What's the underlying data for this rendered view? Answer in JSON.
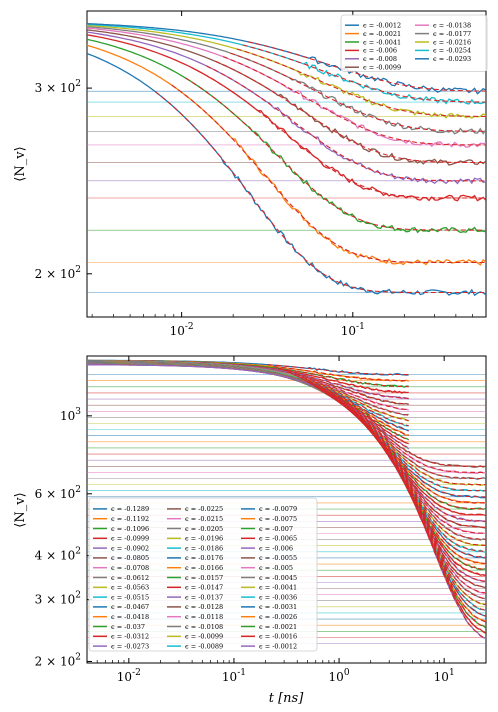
{
  "chart_data": [
    {
      "type": "line",
      "xscale": "log",
      "yscale": "log",
      "xlim": [
        0.0028,
        0.6
      ],
      "ylim": [
        182,
        355
      ],
      "ylabel": "⟨N_v⟩",
      "xlabel": "",
      "x_ticks": [
        {
          "value": 0.01,
          "base": "10",
          "exp": "-2"
        },
        {
          "value": 0.1,
          "base": "10",
          "exp": "-1"
        }
      ],
      "y_ticks": [
        {
          "value": 200,
          "mant": "2",
          "base": "10",
          "exp": "2"
        },
        {
          "value": 300,
          "mant": "3",
          "base": "10",
          "exp": "2"
        }
      ],
      "legend": {
        "placement": "top-right",
        "columns": 2
      },
      "dashed_fit_lines": true,
      "series": [
        {
          "name": "ϵ = -0.0012",
          "color": "#1f77b4",
          "y_start": 348,
          "y_final": 192
        },
        {
          "name": "ϵ = -0.0021",
          "color": "#ff7f0e",
          "y_start": 348,
          "y_final": 205
        },
        {
          "name": "ϵ = -0.0041",
          "color": "#2ca02c",
          "y_start": 348,
          "y_final": 220
        },
        {
          "name": "ϵ = -0.006",
          "color": "#d62728",
          "y_start": 348,
          "y_final": 236
        },
        {
          "name": "ϵ = -0.008",
          "color": "#9467bd",
          "y_start": 348,
          "y_final": 245
        },
        {
          "name": "ϵ = -0.0099",
          "color": "#8c564b",
          "y_start": 348,
          "y_final": 255
        },
        {
          "name": "ϵ = -0.0138",
          "color": "#e377c2",
          "y_start": 348,
          "y_final": 265
        },
        {
          "name": "ϵ = -0.0177",
          "color": "#7f7f7f",
          "y_start": 348,
          "y_final": 273
        },
        {
          "name": "ϵ = -0.0216",
          "color": "#bcbd22",
          "y_start": 348,
          "y_final": 282
        },
        {
          "name": "ϵ = -0.0254",
          "color": "#17becf",
          "y_start": 348,
          "y_final": 291
        },
        {
          "name": "ϵ = -0.0293",
          "color": "#1f77b4",
          "y_start": 348,
          "y_final": 298
        }
      ]
    },
    {
      "type": "line",
      "xscale": "log",
      "yscale": "log",
      "xlim": [
        0.004,
        25
      ],
      "ylim": [
        198,
        1480
      ],
      "ylabel": "⟨N_v⟩",
      "xlabel": "t   [ns]",
      "x_ticks": [
        {
          "value": 0.01,
          "base": "10",
          "exp": "-2"
        },
        {
          "value": 0.1,
          "base": "10",
          "exp": "-1"
        },
        {
          "value": 1,
          "base": "10",
          "exp": "0"
        },
        {
          "value": 10,
          "base": "10",
          "exp": "1"
        }
      ],
      "y_ticks": [
        {
          "value": 200,
          "mant": "2",
          "base": "10",
          "exp": "2"
        },
        {
          "value": 300,
          "mant": "3",
          "base": "10",
          "exp": "2"
        },
        {
          "value": 400,
          "mant": "4",
          "base": "10",
          "exp": "2"
        },
        {
          "value": 600,
          "mant": "6",
          "base": "10",
          "exp": "2"
        },
        {
          "value": 1000,
          "mant": "",
          "base": "10",
          "exp": "3"
        }
      ],
      "legend": {
        "placement": "lower-left",
        "columns": 3
      },
      "dashed_fit_lines": true,
      "series": [
        {
          "name": "ϵ = -0.1289",
          "color": "#1f77b4"
        },
        {
          "name": "ϵ = -0.1192",
          "color": "#ff7f0e"
        },
        {
          "name": "ϵ = -0.1096",
          "color": "#2ca02c"
        },
        {
          "name": "ϵ = -0.0999",
          "color": "#d62728"
        },
        {
          "name": "ϵ = -0.0902",
          "color": "#9467bd"
        },
        {
          "name": "ϵ = -0.0805",
          "color": "#8c564b"
        },
        {
          "name": "ϵ = -0.0708",
          "color": "#e377c2"
        },
        {
          "name": "ϵ = -0.0612",
          "color": "#7f7f7f"
        },
        {
          "name": "ϵ = -0.0563",
          "color": "#bcbd22"
        },
        {
          "name": "ϵ = -0.0515",
          "color": "#17becf"
        },
        {
          "name": "ϵ = -0.0467",
          "color": "#1f77b4"
        },
        {
          "name": "ϵ = -0.0418",
          "color": "#ff7f0e"
        },
        {
          "name": "ϵ = -0.037",
          "color": "#2ca02c"
        },
        {
          "name": "ϵ = -0.0312",
          "color": "#d62728"
        },
        {
          "name": "ϵ = -0.0273",
          "color": "#9467bd"
        },
        {
          "name": "ϵ = -0.0225",
          "color": "#8c564b"
        },
        {
          "name": "ϵ = -0.0215",
          "color": "#e377c2"
        },
        {
          "name": "ϵ = -0.0205",
          "color": "#7f7f7f"
        },
        {
          "name": "ϵ = -0.0196",
          "color": "#bcbd22"
        },
        {
          "name": "ϵ = -0.0186",
          "color": "#17becf"
        },
        {
          "name": "ϵ = -0.0176",
          "color": "#1f77b4"
        },
        {
          "name": "ϵ = -0.0166",
          "color": "#ff7f0e"
        },
        {
          "name": "ϵ = -0.0157",
          "color": "#2ca02c"
        },
        {
          "name": "ϵ = -0.0147",
          "color": "#d62728"
        },
        {
          "name": "ϵ = -0.0137",
          "color": "#9467bd"
        },
        {
          "name": "ϵ = -0.0128",
          "color": "#8c564b"
        },
        {
          "name": "ϵ = -0.0118",
          "color": "#e377c2"
        },
        {
          "name": "ϵ = -0.0108",
          "color": "#7f7f7f"
        },
        {
          "name": "ϵ = -0.0099",
          "color": "#bcbd22"
        },
        {
          "name": "ϵ = -0.0089",
          "color": "#17becf"
        },
        {
          "name": "ϵ = -0.0079",
          "color": "#1f77b4"
        },
        {
          "name": "ϵ = -0.0075",
          "color": "#ff7f0e"
        },
        {
          "name": "ϵ = -0.007",
          "color": "#2ca02c"
        },
        {
          "name": "ϵ = -0.0065",
          "color": "#d62728"
        },
        {
          "name": "ϵ = -0.006",
          "color": "#9467bd"
        },
        {
          "name": "ϵ = -0.0055",
          "color": "#8c564b"
        },
        {
          "name": "ϵ = -0.005",
          "color": "#e377c2"
        },
        {
          "name": "ϵ = -0.0045",
          "color": "#7f7f7f"
        },
        {
          "name": "ϵ = -0.0041",
          "color": "#bcbd22"
        },
        {
          "name": "ϵ = -0.0036",
          "color": "#17becf"
        },
        {
          "name": "ϵ = -0.0031",
          "color": "#1f77b4"
        },
        {
          "name": "ϵ = -0.0026",
          "color": "#ff7f0e"
        },
        {
          "name": "ϵ = -0.0021",
          "color": "#2ca02c"
        },
        {
          "name": "ϵ = -0.0016",
          "color": "#d62728"
        },
        {
          "name": "ϵ = -0.0012",
          "color": "#9467bd"
        }
      ]
    }
  ]
}
